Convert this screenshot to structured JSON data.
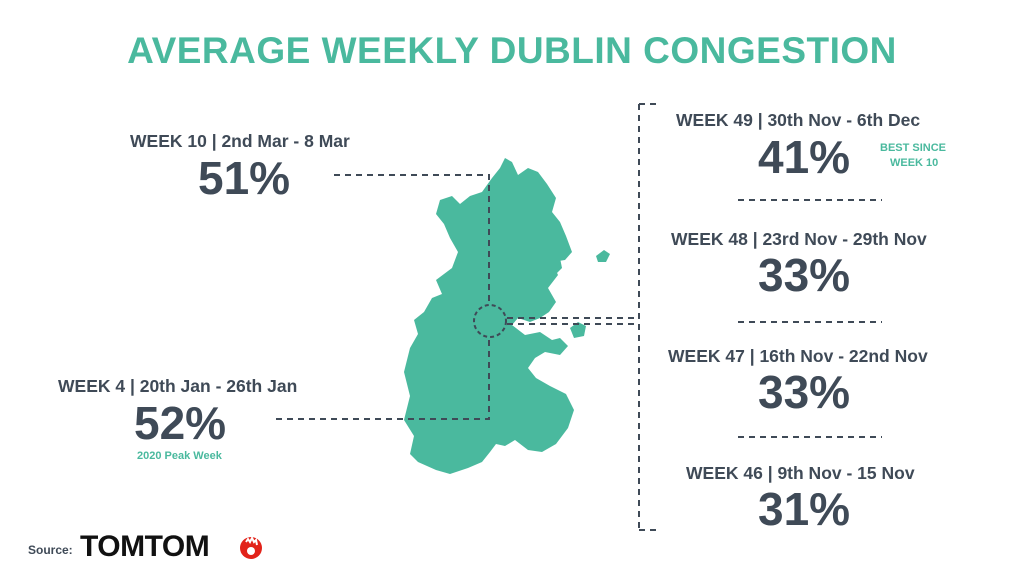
{
  "title": "AVERAGE WEEKLY DUBLIN CONGESTION",
  "colors": {
    "accent": "#4ab99e",
    "text": "#3f4a57",
    "logo_hand": "#e2231a"
  },
  "chart_data": {
    "type": "table",
    "title": "AVERAGE WEEKLY DUBLIN CONGESTION",
    "unit": "%",
    "rows": [
      {
        "week": "WEEK 10 | 2nd Mar - 8 Mar",
        "value": 51,
        "label": "51%"
      },
      {
        "week": "WEEK 4 | 20th Jan - 26th Jan",
        "value": 52,
        "label": "52%",
        "note": "2020 Peak Week"
      },
      {
        "week": "WEEK 49 | 30th Nov - 6th Dec",
        "value": 41,
        "label": "41%",
        "note": "BEST SINCE WEEK 10"
      },
      {
        "week": "WEEK 48 | 23rd Nov - 29th Nov",
        "value": 33,
        "label": "33%"
      },
      {
        "week": "WEEK 47 | 16th Nov - 22nd Nov",
        "value": 33,
        "label": "33%"
      },
      {
        "week": "WEEK 46 | 9th Nov - 15 Nov",
        "value": 31,
        "label": "31%"
      }
    ]
  },
  "notes": {
    "best_since_line1": "BEST SINCE",
    "best_since_line2": "WEEK 10"
  },
  "source": {
    "label": "Source:",
    "brand": "TOMTOM",
    "icon": "tomtom-hand-icon"
  }
}
